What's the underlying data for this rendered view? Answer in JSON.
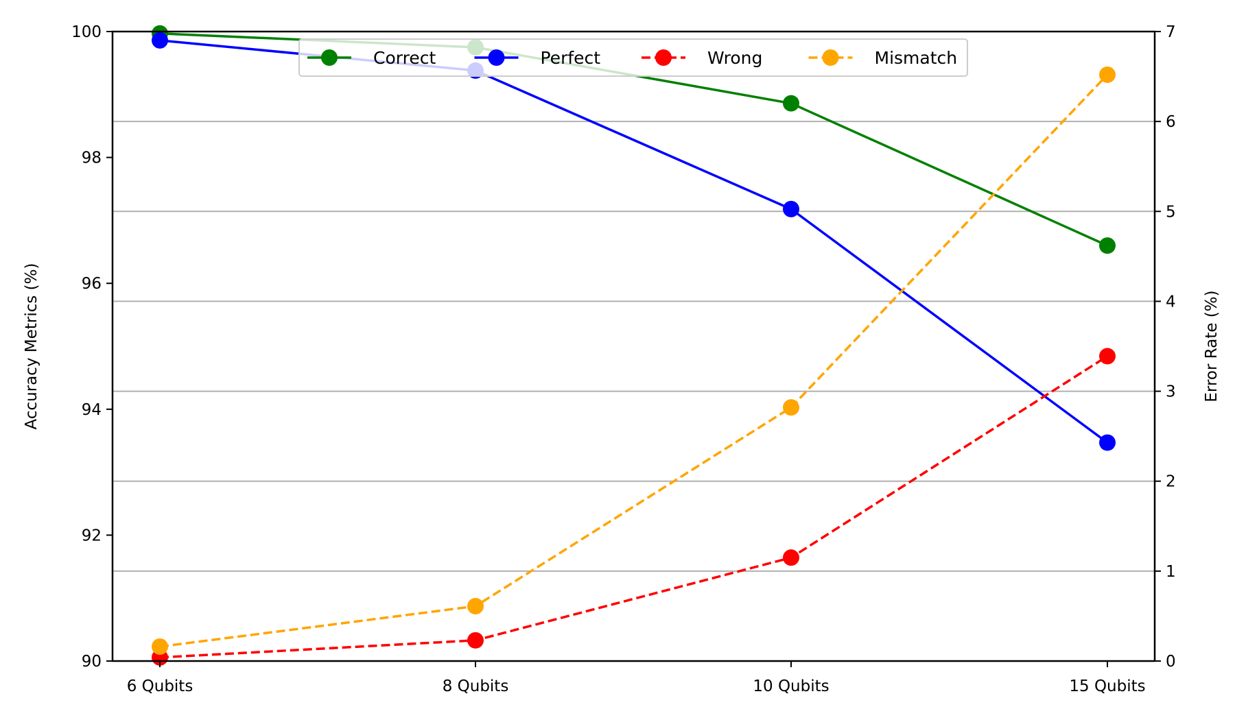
{
  "chart_data": {
    "type": "line",
    "categories": [
      "6 Qubits",
      "8 Qubits",
      "10 Qubits",
      "15 Qubits"
    ],
    "left_axis": {
      "label": "Accuracy Metrics (%)",
      "ylim": [
        90,
        100
      ],
      "ticks": [
        90,
        92,
        94,
        96,
        98,
        100
      ]
    },
    "right_axis": {
      "label": "Error Rate (%)",
      "ylim": [
        0,
        7
      ],
      "ticks": [
        0,
        1,
        2,
        3,
        4,
        5,
        6,
        7
      ]
    },
    "grid": {
      "horizontal": true,
      "axis": "right"
    },
    "legend": {
      "placement": "top-center",
      "ncol": 4
    },
    "series": [
      {
        "name": "Correct",
        "axis": "left",
        "values": [
          99.97,
          99.75,
          98.86,
          96.6
        ],
        "color": "#008000",
        "style": "solid"
      },
      {
        "name": "Perfect",
        "axis": "left",
        "values": [
          99.86,
          99.38,
          97.18,
          93.47
        ],
        "color": "#0000ff",
        "style": "solid"
      },
      {
        "name": "Wrong",
        "axis": "right",
        "values": [
          0.04,
          0.23,
          1.15,
          3.39
        ],
        "color": "#ff0000",
        "style": "dashed"
      },
      {
        "name": "Mismatch",
        "axis": "right",
        "values": [
          0.16,
          0.61,
          2.82,
          6.52
        ],
        "color": "#ffa500",
        "style": "dashed"
      }
    ]
  }
}
